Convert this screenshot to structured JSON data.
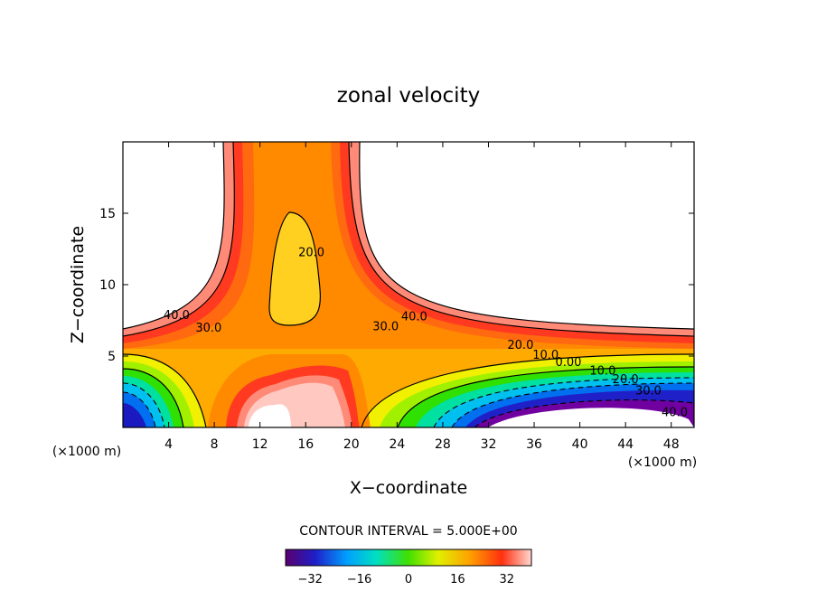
{
  "chart_data": {
    "type": "heatmap",
    "title": "zonal velocity",
    "xlabel": "X−coordinate",
    "ylabel": "Z−coordinate",
    "x_unit_left": "(×1000 m)",
    "x_unit_right": "(×1000 m)",
    "xlim": [
      0,
      50
    ],
    "ylim": [
      0,
      20
    ],
    "x_ticks": [
      4,
      8,
      12,
      16,
      20,
      24,
      28,
      32,
      36,
      40,
      44,
      48
    ],
    "y_ticks": [
      5,
      10,
      15
    ],
    "contour_interval_text": "CONTOUR INTERVAL = 5.000E+00",
    "contour_labels": [
      {
        "text": "40.0",
        "x": 4.7,
        "y": 7.6
      },
      {
        "text": "30.0",
        "x": 7.5,
        "y": 6.7
      },
      {
        "text": "20.0",
        "x": 16.5,
        "y": 12.0
      },
      {
        "text": "30.0",
        "x": 23.0,
        "y": 6.8
      },
      {
        "text": "40.0",
        "x": 25.5,
        "y": 7.5
      },
      {
        "text": "20.0",
        "x": 34.8,
        "y": 5.5
      },
      {
        "text": "10.0",
        "x": 37.0,
        "y": 4.8
      },
      {
        "text": "0.00",
        "x": 39.0,
        "y": 4.3
      },
      {
        "text": "10.0",
        "x": 42.0,
        "y": 3.7
      },
      {
        "text": "20.0",
        "x": 44.0,
        "y": 3.1
      },
      {
        "text": "30.0",
        "x": 46.0,
        "y": 2.3
      },
      {
        "text": "40.0",
        "x": 48.3,
        "y": 0.8
      }
    ],
    "colorbar": {
      "range": [
        -40,
        40
      ],
      "ticks": [
        "−32",
        "−16",
        "0",
        "16",
        "32"
      ],
      "tick_values": [
        -32,
        -16,
        0,
        16,
        32
      ]
    },
    "field_description": "Elevated-velocity cross with a vertical column at x~12-20 and a horizontal layer near z~4-7; strong negative flow below z~3 on the left and right; blank (masked) regions in the upper corners and two lower pockets."
  }
}
